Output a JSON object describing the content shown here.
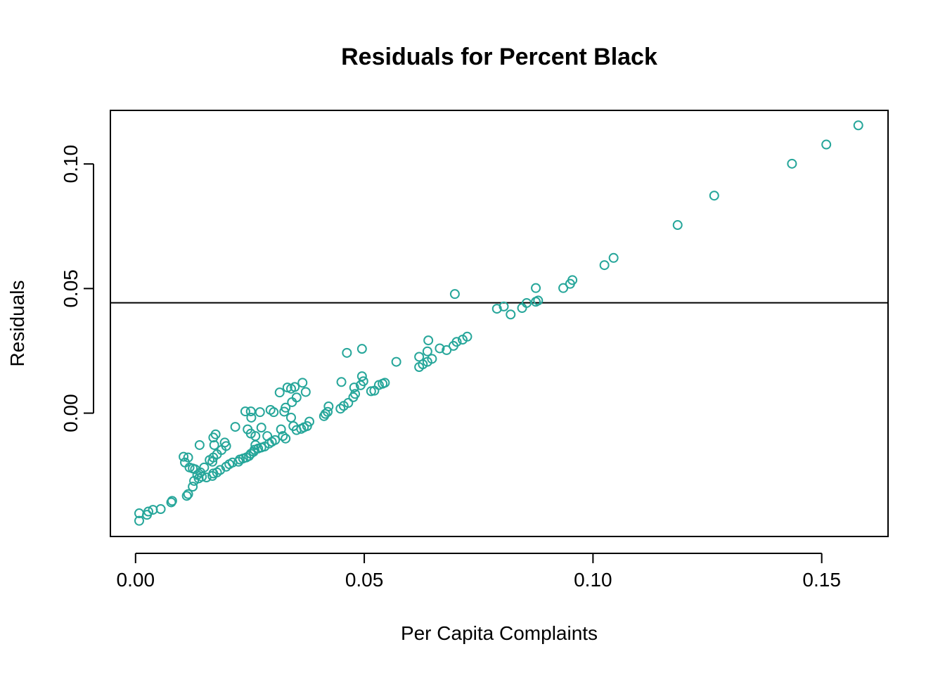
{
  "chart_data": {
    "type": "scatter",
    "title": "Residuals for Percent Black",
    "xlabel": "Per Capita Complaints",
    "ylabel": "Residuals",
    "xlim": [
      -0.0055,
      0.1645
    ],
    "ylim": [
      -0.0495,
      0.1215
    ],
    "x_ticks": [
      0.0,
      0.05,
      0.1,
      0.15
    ],
    "x_tick_labels": [
      "0.00",
      "0.05",
      "0.10",
      "0.15"
    ],
    "y_ticks": [
      0.0,
      0.05,
      0.1
    ],
    "y_tick_labels": [
      "0.00",
      "0.05",
      "0.10"
    ],
    "hline": 0.0443,
    "grid": false,
    "marker": "open-circle",
    "point_color": "#26A69A",
    "points": [
      [
        0.158,
        0.1155
      ],
      [
        0.151,
        0.1078
      ],
      [
        0.1435,
        0.1001
      ],
      [
        0.1265,
        0.0873
      ],
      [
        0.1185,
        0.0755
      ],
      [
        0.1045,
        0.0623
      ],
      [
        0.1025,
        0.0594
      ],
      [
        0.0955,
        0.0534
      ],
      [
        0.095,
        0.0519
      ],
      [
        0.0935,
        0.0502
      ],
      [
        0.0875,
        0.0502
      ],
      [
        0.088,
        0.0452
      ],
      [
        0.0875,
        0.0447
      ],
      [
        0.0855,
        0.0442
      ],
      [
        0.0845,
        0.0422
      ],
      [
        0.0805,
        0.0428
      ],
      [
        0.079,
        0.0419
      ],
      [
        0.082,
        0.0396
      ],
      [
        0.0698,
        0.0478
      ],
      [
        0.0725,
        0.0307
      ],
      [
        0.0715,
        0.0295
      ],
      [
        0.0702,
        0.0286
      ],
      [
        0.0695,
        0.027
      ],
      [
        0.068,
        0.0253
      ],
      [
        0.0665,
        0.026
      ],
      [
        0.064,
        0.0292
      ],
      [
        0.0638,
        0.0248
      ],
      [
        0.0648,
        0.0218
      ],
      [
        0.0638,
        0.0206
      ],
      [
        0.062,
        0.0226
      ],
      [
        0.0628,
        0.0196
      ],
      [
        0.062,
        0.0185
      ],
      [
        0.057,
        0.0206
      ],
      [
        0.0545,
        0.0122
      ],
      [
        0.054,
        0.0118
      ],
      [
        0.0532,
        0.0113
      ],
      [
        0.0522,
        0.009
      ],
      [
        0.0515,
        0.0088
      ],
      [
        0.0495,
        0.0258
      ],
      [
        0.0495,
        0.0148
      ],
      [
        0.0498,
        0.0128
      ],
      [
        0.0492,
        0.0112
      ],
      [
        0.0478,
        0.0103
      ],
      [
        0.048,
        0.0077
      ],
      [
        0.0476,
        0.0064
      ],
      [
        0.0465,
        0.0041
      ],
      [
        0.0455,
        0.0029
      ],
      [
        0.0448,
        0.0018
      ],
      [
        0.0462,
        0.0242
      ],
      [
        0.045,
        0.0125
      ],
      [
        0.0422,
        0.0027
      ],
      [
        0.042,
        0.0005
      ],
      [
        0.0415,
        -0.0003
      ],
      [
        0.0412,
        -0.0012
      ],
      [
        0.0365,
        0.0122
      ],
      [
        0.0372,
        0.0085
      ],
      [
        0.0348,
        0.0105
      ],
      [
        0.034,
        0.0098
      ],
      [
        0.0332,
        0.0103
      ],
      [
        0.0352,
        0.0063
      ],
      [
        0.0342,
        0.0044
      ],
      [
        0.0315,
        0.0083
      ],
      [
        0.0328,
        0.0022
      ],
      [
        0.0325,
        0.0006
      ],
      [
        0.034,
        -0.0018
      ],
      [
        0.0295,
        0.0013
      ],
      [
        0.0302,
        0.0004
      ],
      [
        0.0272,
        0.0004
      ],
      [
        0.0252,
        0.0007
      ],
      [
        0.024,
        0.0007
      ],
      [
        0.0253,
        -0.0018
      ],
      [
        0.038,
        -0.0034
      ],
      [
        0.0375,
        -0.0052
      ],
      [
        0.0368,
        -0.0057
      ],
      [
        0.0362,
        -0.0063
      ],
      [
        0.0352,
        -0.0068
      ],
      [
        0.0345,
        -0.0052
      ],
      [
        0.0318,
        -0.0065
      ],
      [
        0.0322,
        -0.0092
      ],
      [
        0.0328,
        -0.0102
      ],
      [
        0.0305,
        -0.0108
      ],
      [
        0.0298,
        -0.0115
      ],
      [
        0.0292,
        -0.0122
      ],
      [
        0.0282,
        -0.0134
      ],
      [
        0.0275,
        -0.0138
      ],
      [
        0.0268,
        -0.0142
      ],
      [
        0.026,
        -0.0147
      ],
      [
        0.0258,
        -0.0155
      ],
      [
        0.0252,
        -0.0163
      ],
      [
        0.0248,
        -0.0172
      ],
      [
        0.0242,
        -0.0178
      ],
      [
        0.0235,
        -0.0182
      ],
      [
        0.0228,
        -0.0186
      ],
      [
        0.0275,
        -0.0058
      ],
      [
        0.0288,
        -0.0092
      ],
      [
        0.0262,
        -0.0092
      ],
      [
        0.0252,
        -0.0082
      ],
      [
        0.0245,
        -0.0065
      ],
      [
        0.0218,
        -0.0055
      ],
      [
        0.0262,
        -0.0128
      ],
      [
        0.0225,
        -0.0195
      ],
      [
        0.0212,
        -0.0198
      ],
      [
        0.0205,
        -0.0205
      ],
      [
        0.0198,
        -0.0215
      ],
      [
        0.0185,
        -0.0228
      ],
      [
        0.0178,
        -0.0238
      ],
      [
        0.017,
        -0.0242
      ],
      [
        0.0168,
        -0.0252
      ],
      [
        0.0175,
        -0.0085
      ],
      [
        0.017,
        -0.0098
      ],
      [
        0.0172,
        -0.0128
      ],
      [
        0.0195,
        -0.0118
      ],
      [
        0.0198,
        -0.0132
      ],
      [
        0.0188,
        -0.0148
      ],
      [
        0.0178,
        -0.0165
      ],
      [
        0.017,
        -0.0178
      ],
      [
        0.0162,
        -0.0188
      ],
      [
        0.0168,
        -0.0195
      ],
      [
        0.015,
        -0.0218
      ],
      [
        0.0142,
        -0.0238
      ],
      [
        0.0135,
        -0.0248
      ],
      [
        0.0138,
        -0.0262
      ],
      [
        0.0145,
        -0.0255
      ],
      [
        0.0155,
        -0.0258
      ],
      [
        0.0128,
        -0.0272
      ],
      [
        0.0125,
        -0.0295
      ],
      [
        0.0115,
        -0.0325
      ],
      [
        0.0112,
        -0.0332
      ],
      [
        0.014,
        -0.0128
      ],
      [
        0.0105,
        -0.0175
      ],
      [
        0.0115,
        -0.0178
      ],
      [
        0.0108,
        -0.0198
      ],
      [
        0.0118,
        -0.0218
      ],
      [
        0.013,
        -0.0225
      ],
      [
        0.0125,
        -0.0222
      ],
      [
        0.008,
        -0.0352
      ],
      [
        0.0078,
        -0.0358
      ],
      [
        0.0055,
        -0.0385
      ],
      [
        0.0038,
        -0.0388
      ],
      [
        0.0028,
        -0.0395
      ],
      [
        0.0025,
        -0.0408
      ],
      [
        0.0008,
        -0.0402
      ],
      [
        0.0008,
        -0.0432
      ]
    ]
  }
}
